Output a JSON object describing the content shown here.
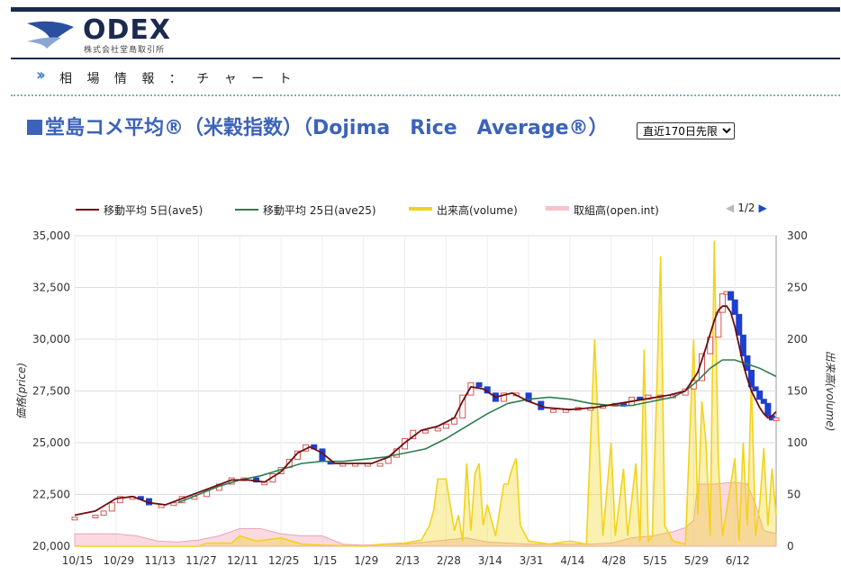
{
  "header": {
    "logo_text": "ODEX",
    "logo_sub": "株式会社堂島取引所"
  },
  "breadcrumb": "相 場 情 報 ： チ ャ ー ト",
  "title": "堂島コメ平均®（米穀指数）（Dojima　Rice　Average®）",
  "period_select": {
    "selected": "直近170日先限"
  },
  "pager": {
    "label": "1/2"
  },
  "legend": {
    "ave5": "移動平均 5日(ave5)",
    "ave25": "移動平均 25日(ave25)",
    "volume": "出来高(volume)",
    "openint": "取組高(open.int)"
  },
  "colors": {
    "ave5": "#6b0f12",
    "ave25": "#2e7d4f",
    "volume": "#f2d31b",
    "openint": "#f6c2cc",
    "up": "#d9534f",
    "down": "#1d3fd0",
    "title": "#3d63b8"
  },
  "chart_data": {
    "type": "line",
    "ylabel": "価格(price)",
    "y2label": "出来高(volume)",
    "ylim": [
      20000,
      35000
    ],
    "y2lim": [
      0,
      300
    ],
    "yticks": [
      "35,000",
      "32,500",
      "30,000",
      "27,500",
      "25,000",
      "22,500",
      "20,000"
    ],
    "y2ticks": [
      "300",
      "250",
      "200",
      "150",
      "100",
      "50",
      "0"
    ],
    "xticks": [
      "10/15",
      "10/29",
      "11/13",
      "11/27",
      "12/11",
      "12/25",
      "1/15",
      "1/29",
      "2/13",
      "2/28",
      "3/14",
      "3/31",
      "4/14",
      "4/28",
      "5/15",
      "5/29",
      "6/12"
    ],
    "x_range": [
      0,
      170
    ],
    "price": [
      [
        0,
        21400
      ],
      [
        5,
        21500
      ],
      [
        7,
        21700
      ],
      [
        9,
        22100
      ],
      [
        11,
        22400
      ],
      [
        14,
        22400
      ],
      [
        16,
        22300
      ],
      [
        18,
        22000
      ],
      [
        21,
        22000
      ],
      [
        24,
        22100
      ],
      [
        26,
        22400
      ],
      [
        29,
        22400
      ],
      [
        32,
        22700
      ],
      [
        35,
        23000
      ],
      [
        38,
        23300
      ],
      [
        41,
        23300
      ],
      [
        44,
        23100
      ],
      [
        46,
        23100
      ],
      [
        48,
        23500
      ],
      [
        50,
        23800
      ],
      [
        52,
        24200
      ],
      [
        54,
        24600
      ],
      [
        56,
        24900
      ],
      [
        58,
        24700
      ],
      [
        60,
        24100
      ],
      [
        62,
        24000
      ],
      [
        65,
        24000
      ],
      [
        68,
        24000
      ],
      [
        71,
        24000
      ],
      [
        74,
        24000
      ],
      [
        76,
        24300
      ],
      [
        78,
        24700
      ],
      [
        80,
        25200
      ],
      [
        82,
        25600
      ],
      [
        85,
        25600
      ],
      [
        88,
        25700
      ],
      [
        90,
        25900
      ],
      [
        92,
        26200
      ],
      [
        94,
        27300
      ],
      [
        96,
        27900
      ],
      [
        98,
        27700
      ],
      [
        100,
        27400
      ],
      [
        102,
        27000
      ],
      [
        104,
        27400
      ],
      [
        107,
        27400
      ],
      [
        110,
        27000
      ],
      [
        113,
        26600
      ],
      [
        116,
        26600
      ],
      [
        119,
        26600
      ],
      [
        122,
        26700
      ],
      [
        125,
        26700
      ],
      [
        128,
        26800
      ],
      [
        131,
        26900
      ],
      [
        133,
        26800
      ],
      [
        135,
        27200
      ],
      [
        137,
        27100
      ],
      [
        139,
        27300
      ],
      [
        142,
        27300
      ],
      [
        145,
        27300
      ],
      [
        148,
        27600
      ],
      [
        150,
        28000
      ],
      [
        152,
        29300
      ],
      [
        154,
        30100
      ],
      [
        156,
        31300
      ],
      [
        157,
        32200
      ],
      [
        158,
        32300
      ],
      [
        159,
        31900
      ],
      [
        160,
        31200
      ],
      [
        161,
        30200
      ],
      [
        162,
        29200
      ],
      [
        163,
        28500
      ],
      [
        164,
        27700
      ],
      [
        165,
        27500
      ],
      [
        166,
        27100
      ],
      [
        167,
        26900
      ],
      [
        168,
        26300
      ],
      [
        169,
        26100
      ],
      [
        170,
        26200
      ]
    ],
    "ave5": [
      [
        0,
        21500
      ],
      [
        5,
        21700
      ],
      [
        10,
        22300
      ],
      [
        14,
        22400
      ],
      [
        18,
        22100
      ],
      [
        22,
        22000
      ],
      [
        26,
        22300
      ],
      [
        30,
        22600
      ],
      [
        34,
        22900
      ],
      [
        38,
        23200
      ],
      [
        42,
        23200
      ],
      [
        46,
        23100
      ],
      [
        50,
        23600
      ],
      [
        54,
        24500
      ],
      [
        57,
        24800
      ],
      [
        60,
        24500
      ],
      [
        63,
        24000
      ],
      [
        68,
        24000
      ],
      [
        72,
        24000
      ],
      [
        76,
        24300
      ],
      [
        80,
        25000
      ],
      [
        84,
        25600
      ],
      [
        88,
        25800
      ],
      [
        92,
        26200
      ],
      [
        94,
        27000
      ],
      [
        96,
        27700
      ],
      [
        99,
        27600
      ],
      [
        102,
        27200
      ],
      [
        106,
        27400
      ],
      [
        110,
        27000
      ],
      [
        114,
        26700
      ],
      [
        120,
        26600
      ],
      [
        126,
        26700
      ],
      [
        132,
        26900
      ],
      [
        138,
        27100
      ],
      [
        144,
        27300
      ],
      [
        148,
        27500
      ],
      [
        151,
        28400
      ],
      [
        153,
        29600
      ],
      [
        155,
        30900
      ],
      [
        156,
        31400
      ],
      [
        157,
        31600
      ],
      [
        158,
        31600
      ],
      [
        159,
        31300
      ],
      [
        160,
        30600
      ],
      [
        161,
        29700
      ],
      [
        162,
        28800
      ],
      [
        163,
        28100
      ],
      [
        164,
        27500
      ],
      [
        165,
        27100
      ],
      [
        166,
        26700
      ],
      [
        167,
        26400
      ],
      [
        168,
        26200
      ],
      [
        169,
        26300
      ],
      [
        170,
        26500
      ]
    ],
    "ave25": [
      [
        25,
        22100
      ],
      [
        30,
        22500
      ],
      [
        35,
        22900
      ],
      [
        40,
        23200
      ],
      [
        45,
        23400
      ],
      [
        50,
        23700
      ],
      [
        55,
        24000
      ],
      [
        60,
        24100
      ],
      [
        65,
        24100
      ],
      [
        70,
        24200
      ],
      [
        75,
        24300
      ],
      [
        80,
        24500
      ],
      [
        85,
        24700
      ],
      [
        90,
        25200
      ],
      [
        95,
        25800
      ],
      [
        100,
        26400
      ],
      [
        105,
        26900
      ],
      [
        110,
        27100
      ],
      [
        115,
        27200
      ],
      [
        120,
        27100
      ],
      [
        125,
        26900
      ],
      [
        130,
        26800
      ],
      [
        135,
        26800
      ],
      [
        140,
        27000
      ],
      [
        145,
        27200
      ],
      [
        148,
        27500
      ],
      [
        151,
        28000
      ],
      [
        154,
        28600
      ],
      [
        157,
        29000
      ],
      [
        160,
        29000
      ],
      [
        163,
        28800
      ],
      [
        166,
        28600
      ],
      [
        170,
        28200
      ]
    ],
    "volume": [
      [
        0,
        0
      ],
      [
        30,
        0
      ],
      [
        32,
        3
      ],
      [
        38,
        3
      ],
      [
        40,
        10
      ],
      [
        44,
        5
      ],
      [
        50,
        8
      ],
      [
        55,
        2
      ],
      [
        60,
        1
      ],
      [
        70,
        0
      ],
      [
        75,
        2
      ],
      [
        80,
        3
      ],
      [
        84,
        6
      ],
      [
        86,
        20
      ],
      [
        87,
        35
      ],
      [
        88,
        65
      ],
      [
        90,
        65
      ],
      [
        92,
        15
      ],
      [
        93,
        30
      ],
      [
        94,
        5
      ],
      [
        95,
        80
      ],
      [
        96,
        15
      ],
      [
        97,
        70
      ],
      [
        98,
        80
      ],
      [
        99,
        20
      ],
      [
        100,
        40
      ],
      [
        102,
        10
      ],
      [
        104,
        60
      ],
      [
        105,
        60
      ],
      [
        106,
        75
      ],
      [
        107,
        85
      ],
      [
        108,
        20
      ],
      [
        110,
        5
      ],
      [
        115,
        2
      ],
      [
        120,
        5
      ],
      [
        124,
        2
      ],
      [
        126,
        200
      ],
      [
        128,
        10
      ],
      [
        130,
        100
      ],
      [
        131,
        10
      ],
      [
        133,
        75
      ],
      [
        134,
        10
      ],
      [
        136,
        80
      ],
      [
        137,
        5
      ],
      [
        138,
        190
      ],
      [
        139,
        5
      ],
      [
        140,
        10
      ],
      [
        142,
        280
      ],
      [
        143,
        20
      ],
      [
        145,
        5
      ],
      [
        148,
        2
      ],
      [
        150,
        200
      ],
      [
        151,
        30
      ],
      [
        152,
        140
      ],
      [
        153,
        100
      ],
      [
        154,
        10
      ],
      [
        155,
        295
      ],
      [
        156,
        80
      ],
      [
        157,
        10
      ],
      [
        160,
        85
      ],
      [
        161,
        5
      ],
      [
        162,
        100
      ],
      [
        163,
        20
      ],
      [
        164,
        160
      ],
      [
        165,
        10
      ],
      [
        166,
        40
      ],
      [
        167,
        95
      ],
      [
        168,
        20
      ],
      [
        169,
        75
      ],
      [
        170,
        30
      ]
    ],
    "openint": [
      [
        0,
        12
      ],
      [
        10,
        12
      ],
      [
        15,
        10
      ],
      [
        20,
        5
      ],
      [
        25,
        4
      ],
      [
        30,
        6
      ],
      [
        35,
        10
      ],
      [
        40,
        17
      ],
      [
        45,
        17
      ],
      [
        50,
        12
      ],
      [
        55,
        10
      ],
      [
        60,
        10
      ],
      [
        65,
        2
      ],
      [
        70,
        1
      ],
      [
        75,
        2
      ],
      [
        80,
        2
      ],
      [
        85,
        4
      ],
      [
        90,
        6
      ],
      [
        95,
        8
      ],
      [
        100,
        4
      ],
      [
        105,
        3
      ],
      [
        110,
        2
      ],
      [
        115,
        2
      ],
      [
        120,
        2
      ],
      [
        125,
        2
      ],
      [
        130,
        3
      ],
      [
        135,
        8
      ],
      [
        140,
        10
      ],
      [
        145,
        14
      ],
      [
        148,
        18
      ],
      [
        150,
        25
      ],
      [
        151,
        60
      ],
      [
        155,
        60
      ],
      [
        160,
        62
      ],
      [
        163,
        60
      ],
      [
        165,
        40
      ],
      [
        167,
        15
      ],
      [
        170,
        12
      ]
    ]
  }
}
